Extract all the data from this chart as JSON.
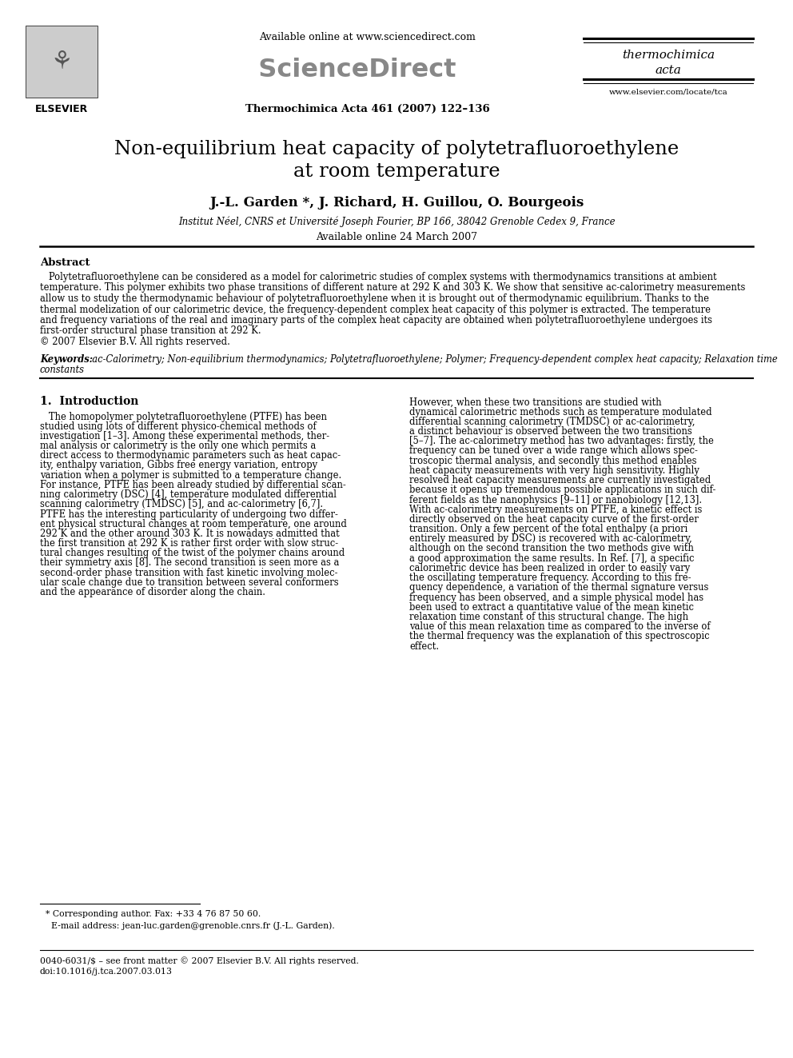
{
  "title_line1": "Non-equilibrium heat capacity of polytetrafluoroethylene",
  "title_line2": "at room temperature",
  "authors": "J.-L. Garden *, J. Richard, H. Guillou, O. Bourgeois",
  "affiliation": "Institut Néel, CNRS et Université Joseph Fourier, BP 166, 38042 Grenoble Cedex 9, France",
  "available_online": "Available online 24 March 2007",
  "journal_header_center": "Available online at www.sciencedirect.com",
  "journal_name_bold": "Thermochimica Acta 461 (2007) 122–136",
  "journal_right1": "thermochimica",
  "journal_right2": "acta",
  "journal_right_url": "www.elsevier.com/locate/tca",
  "elsevier_text": "ELSEVIER",
  "abstract_title": "Abstract",
  "keywords_label": "Keywords:",
  "keywords_text": "  ac-Calorimetry; Non-equilibrium thermodynamics; Polytetrafluoroethylene; Polymer; Frequency-dependent complex heat capacity; Relaxation time\nconstants",
  "section1_title": "1.  Introduction",
  "bg_color": "#ffffff",
  "text_color": "#000000",
  "link_color": "#0000cc",
  "abstract_lines": [
    "   Polytetrafluoroethylene can be considered as a model for calorimetric studies of complex systems with thermodynamics transitions at ambient",
    "temperature. This polymer exhibits two phase transitions of different nature at 292 K and 303 K. We show that sensitive ac-calorimetry measurements",
    "allow us to study the thermodynamic behaviour of polytetrafluoroethylene when it is brought out of thermodynamic equilibrium. Thanks to the",
    "thermal modelization of our calorimetric device, the frequency-dependent complex heat capacity of this polymer is extracted. The temperature",
    "and frequency variations of the real and imaginary parts of the complex heat capacity are obtained when polytetrafluoroethylene undergoes its",
    "first-order structural phase transition at 292 K.",
    "© 2007 Elsevier B.V. All rights reserved."
  ],
  "col1_lines": [
    "   The homopolymer polytetrafluoroethylene (PTFE) has been",
    "studied using lots of different physico-chemical methods of",
    "investigation [1–3]. Among these experimental methods, ther-",
    "mal analysis or calorimetry is the only one which permits a",
    "direct access to thermodynamic parameters such as heat capac-",
    "ity, enthalpy variation, Gibbs free energy variation, entropy",
    "variation when a polymer is submitted to a temperature change.",
    "For instance, PTFE has been already studied by differential scan-",
    "ning calorimetry (DSC) [4], temperature modulated differential",
    "scanning calorimetry (TMDSC) [5], and ac-calorimetry [6,7].",
    "PTFE has the interesting particularity of undergoing two differ-",
    "ent physical structural changes at room temperature, one around",
    "292 K and the other around 303 K. It is nowadays admitted that",
    "the first transition at 292 K is rather first order with slow struc-",
    "tural changes resulting of the twist of the polymer chains around",
    "their symmetry axis [8]. The second transition is seen more as a",
    "second-order phase transition with fast kinetic involving molec-",
    "ular scale change due to transition between several conformers",
    "and the appearance of disorder along the chain."
  ],
  "col2_lines": [
    "However, when these two transitions are studied with",
    "dynamical calorimetric methods such as temperature modulated",
    "differential scanning calorimetry (TMDSC) or ac-calorimetry,",
    "a distinct behaviour is observed between the two transitions",
    "[5–7]. The ac-calorimetry method has two advantages: firstly, the",
    "frequency can be tuned over a wide range which allows spec-",
    "troscopic thermal analysis, and secondly this method enables",
    "heat capacity measurements with very high sensitivity. Highly",
    "resolved heat capacity measurements are currently investigated",
    "because it opens up tremendous possible applications in such dif-",
    "ferent fields as the nanophysics [9–11] or nanobiology [12,13].",
    "With ac-calorimetry measurements on PTFE, a kinetic effect is",
    "directly observed on the heat capacity curve of the first-order",
    "transition. Only a few percent of the total enthalpy (a priori",
    "entirely measured by DSC) is recovered with ac-calorimetry,",
    "although on the second transition the two methods give with",
    "a good approximation the same results. In Ref. [7], a specific",
    "calorimetric device has been realized in order to easily vary",
    "the oscillating temperature frequency. According to this fre-",
    "quency dependence, a variation of the thermal signature versus",
    "frequency has been observed, and a simple physical model has",
    "been used to extract a quantitative value of the mean kinetic",
    "relaxation time constant of this structural change. The high",
    "value of this mean relaxation time as compared to the inverse of",
    "the thermal frequency was the explanation of this spectroscopic",
    "effect."
  ],
  "footer_line1": "  * Corresponding author. Fax: +33 4 76 87 50 60.",
  "footer_line2": "    E-mail address: jean-luc.garden@grenoble.cnrs.fr (J.-L. Garden).",
  "footer_bottom1": "0040-6031/$ – see front matter © 2007 Elsevier B.V. All rights reserved.",
  "footer_bottom2": "doi:10.1016/j.tca.2007.03.013"
}
